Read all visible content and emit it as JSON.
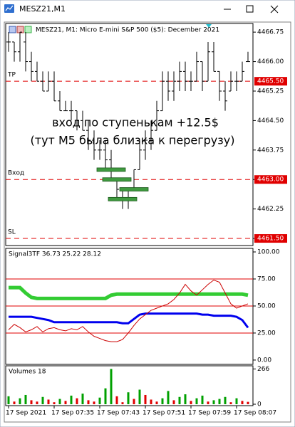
{
  "window_title": "MESZ21,M1",
  "chart_data": [
    {
      "type": "ohlc",
      "title": "MESZ21, M1:  Micro E-mini S&P 500 ($5): December 2021",
      "annotations": [
        "вход по ступенькам +12.5$",
        "(тут М5 была близка к перегрузу)"
      ],
      "high": [
        4466.75,
        4466.5,
        4466.75,
        4466.75,
        4466.25,
        4466,
        4465.75,
        4465.75,
        4465.75,
        4465.25,
        4465,
        4465,
        4464.75,
        4464.75,
        4464.5,
        4464.25,
        4464,
        4464,
        4463.75,
        4463,
        4462.75,
        4462.75,
        4463.25,
        4464,
        4464.25,
        4464.5,
        4465,
        4465.75,
        4465.75,
        4465.75,
        4466,
        4466,
        4465.75,
        4466.25,
        4466,
        4466.5,
        4466.5,
        4465.75,
        4465.5,
        4465.75,
        4465.75,
        4466,
        4466.25
      ],
      "low": [
        4466.25,
        4466,
        4466,
        4465.75,
        4465.5,
        4465.5,
        4465.25,
        4465.25,
        4465,
        4464.75,
        4464.75,
        4464.5,
        4464.25,
        4464.25,
        4463.75,
        4463.5,
        4463.5,
        4463.25,
        4463,
        4462.5,
        4462.25,
        4462.25,
        4462.75,
        4463.25,
        4463.5,
        4463.75,
        4464.25,
        4464.75,
        4465,
        4465,
        4465.25,
        4465.25,
        4465.25,
        4465.5,
        4465.25,
        4465.5,
        4465.75,
        4465,
        4464.75,
        4465.25,
        4465.25,
        4465.5,
        4466
      ],
      "open": [
        4466.5,
        4466.5,
        4466.25,
        4466.5,
        4466,
        4465.75,
        4465.5,
        4465.25,
        4465.5,
        4465,
        4464.75,
        4464.75,
        4464.75,
        4464.5,
        4464.25,
        4464,
        4463.75,
        4463.75,
        4463.5,
        4463,
        4462.75,
        4462.5,
        4462.75,
        4463.25,
        4463.75,
        4464,
        4464.25,
        4464.75,
        4465.5,
        4465.25,
        4465.5,
        4465.75,
        4465.5,
        4465.5,
        4466,
        4465.5,
        4466.25,
        4465.75,
        4465.25,
        4465.25,
        4465.5,
        4465.5,
        4466
      ],
      "close": [
        4466.5,
        4466.25,
        4466.75,
        4466,
        4465.75,
        4465.5,
        4465.25,
        4465.5,
        4465,
        4464.75,
        4464.75,
        4464.75,
        4464.5,
        4464.25,
        4464,
        4463.75,
        4463.75,
        4463.5,
        4463.25,
        4462.75,
        4462.5,
        4462.75,
        4463.25,
        4463.75,
        4464,
        4464.25,
        4464.75,
        4465.5,
        4465.25,
        4465.5,
        4465.75,
        4465.5,
        4465.5,
        4466,
        4465.5,
        4466.25,
        4465.75,
        4465.25,
        4465,
        4465.5,
        4465.5,
        4465.75,
        4466
      ],
      "color": "#000000",
      "ylim": [
        4461.32,
        4466.97
      ],
      "yticks": [
        4466.75,
        {
          "value": 4466,
          "label": "4466.00"
        },
        4465.25,
        {
          "value": 4464.5,
          "label": "4464.50"
        },
        4463.75,
        {
          "value": 4463,
          "label": "4463.00"
        },
        4462.25,
        {
          "value": 4461.5,
          "label": "4461.50"
        }
      ],
      "levels": [
        {
          "name": "TP",
          "value": 4465.5,
          "label": "4465.50"
        },
        {
          "name": "Вход",
          "value": 4463,
          "label": "4463.00"
        },
        {
          "name": "SL",
          "value": 4461.5,
          "label": "4461.50"
        }
      ],
      "level_color": "#e00000",
      "entries": [
        {
          "price": 4463.25,
          "from": 16,
          "to": 20
        },
        {
          "price": 4463,
          "from": 17,
          "to": 21
        },
        {
          "price": 4462.75,
          "from": 20,
          "to": 24
        },
        {
          "price": 4462.5,
          "from": 18,
          "to": 22
        }
      ],
      "entry_color": "#3f9a3f"
    },
    {
      "type": "line",
      "title": "Signal3TF 36.73 25.22 28.12",
      "series": [
        {
          "color": "#33cc33",
          "width": 5,
          "values": [
            67,
            67,
            67,
            62,
            58,
            57,
            57,
            57,
            57,
            57,
            57,
            57,
            57,
            57,
            57,
            57,
            57,
            57,
            60,
            61,
            61,
            61,
            61,
            61,
            61,
            61,
            61,
            61,
            61,
            61,
            61,
            61,
            61,
            61,
            61,
            61,
            61,
            61,
            61,
            61,
            61,
            61,
            60
          ]
        },
        {
          "color": "#0000ee",
          "width": 3,
          "values": [
            40,
            40,
            40,
            40,
            40,
            39,
            38,
            37,
            35,
            35,
            35,
            35,
            35,
            35,
            35,
            35,
            35,
            35,
            35,
            35,
            34,
            34,
            38,
            42,
            43,
            43,
            43,
            43,
            43,
            43,
            43,
            43,
            43,
            43,
            42,
            42,
            41,
            41,
            41,
            41,
            40,
            37,
            30
          ]
        },
        {
          "color": "#cc0000",
          "width": 1,
          "values": [
            28,
            33,
            30,
            26,
            28,
            31,
            26,
            29,
            30,
            28,
            27,
            29,
            28,
            31,
            26,
            22,
            20,
            18,
            17,
            17,
            19,
            25,
            32,
            38,
            42,
            46,
            48,
            50,
            52,
            56,
            62,
            70,
            64,
            60,
            65,
            70,
            74,
            72,
            62,
            52,
            48,
            50,
            52
          ]
        }
      ],
      "ylim": [
        -4,
        103.3
      ],
      "yticks": [
        {
          "value": 100,
          "label": "100.00"
        },
        {
          "value": 75,
          "label": "75.00"
        },
        {
          "value": 50,
          "label": "50.00"
        },
        {
          "value": 25,
          "label": "25.00"
        },
        {
          "value": 0,
          "label": "0.00"
        }
      ],
      "levels": [
        75,
        50,
        25
      ],
      "level_color": "#e00000"
    },
    {
      "type": "bar",
      "title": "Volumes 18",
      "categories": [
        "17 Sep 2021",
        null,
        null,
        null,
        null,
        null,
        null,
        null,
        "17 Sep 07:35",
        null,
        null,
        null,
        null,
        null,
        null,
        null,
        "17 Sep 07:43",
        null,
        null,
        null,
        null,
        null,
        null,
        null,
        "17 Sep 07:51",
        null,
        null,
        null,
        null,
        null,
        null,
        null,
        "17 Sep 07:59",
        null,
        null,
        null,
        null,
        null,
        null,
        null,
        "17 Sep 08:07",
        null,
        null
      ],
      "values": [
        60,
        20,
        45,
        70,
        30,
        20,
        55,
        35,
        15,
        40,
        25,
        65,
        45,
        80,
        30,
        20,
        50,
        120,
        266,
        60,
        15,
        90,
        40,
        110,
        70,
        35,
        20,
        45,
        100,
        30,
        55,
        75,
        25,
        45,
        65,
        20,
        30,
        40,
        55,
        15,
        45,
        25,
        18
      ],
      "up_color": "#00a000",
      "down_color": "#e00000",
      "ylim": [
        0,
        290
      ],
      "yticks": [
        266,
        0
      ]
    }
  ]
}
